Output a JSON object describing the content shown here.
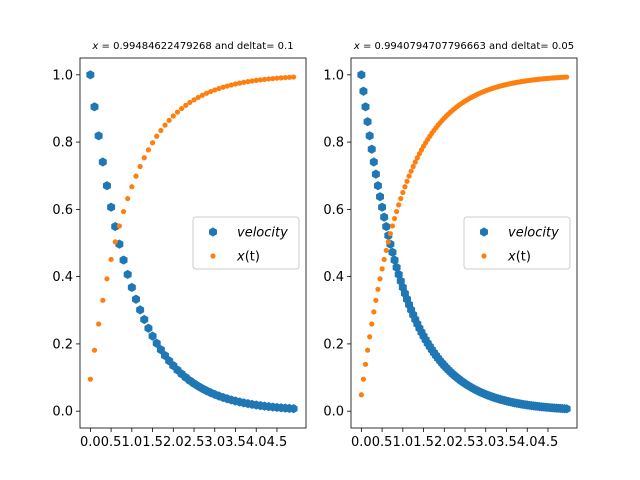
{
  "chart_data": [
    {
      "type": "scatter",
      "title": "x = 0.99484622479268 and deltat= 0.1",
      "title_parts": {
        "symbol": "x",
        "equals": " = ",
        "value": "0.99484622479268",
        "suffix": " and deltat= 0.1"
      },
      "xlabel": "",
      "ylabel": "",
      "xlim": [
        -0.25,
        5.2
      ],
      "ylim": [
        -0.05,
        1.05
      ],
      "x_ticks": [
        0.0,
        0.5,
        1.0,
        1.5,
        2.0,
        2.5,
        3.0,
        3.5,
        4.0,
        4.5
      ],
      "x_tick_labels": [
        "0.0",
        "0.5",
        "1.0",
        "1.5",
        "2.0",
        "2.5",
        "3.0",
        "3.5",
        "4.0",
        "4.5"
      ],
      "y_ticks": [
        0.0,
        0.2,
        0.4,
        0.6,
        0.8,
        1.0
      ],
      "y_tick_labels": [
        "0.0",
        "0.2",
        "0.4",
        "0.6",
        "0.8",
        "1.0"
      ],
      "grid": false,
      "legend": {
        "placement": "center-right",
        "entries": [
          "velocity",
          "x(t)"
        ]
      },
      "deltat": 0.1,
      "n_points": 50,
      "series": [
        {
          "name": "velocity",
          "label": "velocity",
          "marker": "hexagon",
          "color": "#1f77b4",
          "formula": "exp(-t)"
        },
        {
          "name": "x(t)",
          "label_symbol": "x",
          "label_rest": "(t)",
          "marker": "circle",
          "color": "#ff7f0e",
          "formula": "1 - exp(-(t + dt))"
        }
      ]
    },
    {
      "type": "scatter",
      "title": "x = 0.9940794707796663 and deltat= 0.05",
      "title_parts": {
        "symbol": "x",
        "equals": " = ",
        "value": "0.9940794707796663",
        "suffix": " and deltat= 0.05"
      },
      "xlabel": "",
      "ylabel": "",
      "xlim": [
        -0.25,
        5.2
      ],
      "ylim": [
        -0.05,
        1.05
      ],
      "x_ticks": [
        0.0,
        0.5,
        1.0,
        1.5,
        2.0,
        2.5,
        3.0,
        3.5,
        4.0,
        4.5
      ],
      "x_tick_labels": [
        "0.0",
        "0.5",
        "1.0",
        "1.5",
        "2.0",
        "2.5",
        "3.0",
        "3.5",
        "4.0",
        "4.5"
      ],
      "y_ticks": [
        0.0,
        0.2,
        0.4,
        0.6,
        0.8,
        1.0
      ],
      "y_tick_labels": [
        "0.0",
        "0.2",
        "0.4",
        "0.6",
        "0.8",
        "1.0"
      ],
      "grid": false,
      "legend": {
        "placement": "center-right",
        "entries": [
          "velocity",
          "x(t)"
        ]
      },
      "deltat": 0.05,
      "n_points": 100,
      "series": [
        {
          "name": "velocity",
          "label": "velocity",
          "marker": "hexagon",
          "color": "#1f77b4",
          "formula": "exp(-t)"
        },
        {
          "name": "x(t)",
          "label_symbol": "x",
          "label_rest": "(t)",
          "marker": "circle",
          "color": "#ff7f0e",
          "formula": "1 - exp(-(t + dt))"
        }
      ]
    }
  ]
}
